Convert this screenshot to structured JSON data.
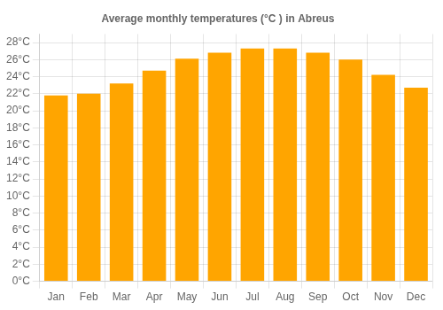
{
  "chart_data": {
    "type": "bar",
    "title": "Average monthly temperatures (°C ) in Abreus",
    "categories": [
      "Jan",
      "Feb",
      "Mar",
      "Apr",
      "May",
      "Jun",
      "Jul",
      "Aug",
      "Sep",
      "Oct",
      "Nov",
      "Dec"
    ],
    "values": [
      21.8,
      22.0,
      23.2,
      24.7,
      26.1,
      26.8,
      27.3,
      27.3,
      26.8,
      26.0,
      24.2,
      22.7
    ],
    "color": "#FFA500",
    "ylim": [
      0,
      29
    ],
    "yticks": [
      {
        "value": 0,
        "label": "0°C"
      },
      {
        "value": 2,
        "label": "2°C"
      },
      {
        "value": 4,
        "label": "4°C"
      },
      {
        "value": 6,
        "label": "6°C"
      },
      {
        "value": 8,
        "label": "8°C"
      },
      {
        "value": 10,
        "label": "10°C"
      },
      {
        "value": 12,
        "label": "12°C"
      },
      {
        "value": 14,
        "label": "14°C"
      },
      {
        "value": 16,
        "label": "16°C"
      },
      {
        "value": 18,
        "label": "18°C"
      },
      {
        "value": 20,
        "label": "20°C"
      },
      {
        "value": 22,
        "label": "22°C"
      },
      {
        "value": 24,
        "label": "24°C"
      },
      {
        "value": 26,
        "label": "26°C"
      },
      {
        "value": 28,
        "label": "28°C"
      }
    ],
    "grid": true
  }
}
